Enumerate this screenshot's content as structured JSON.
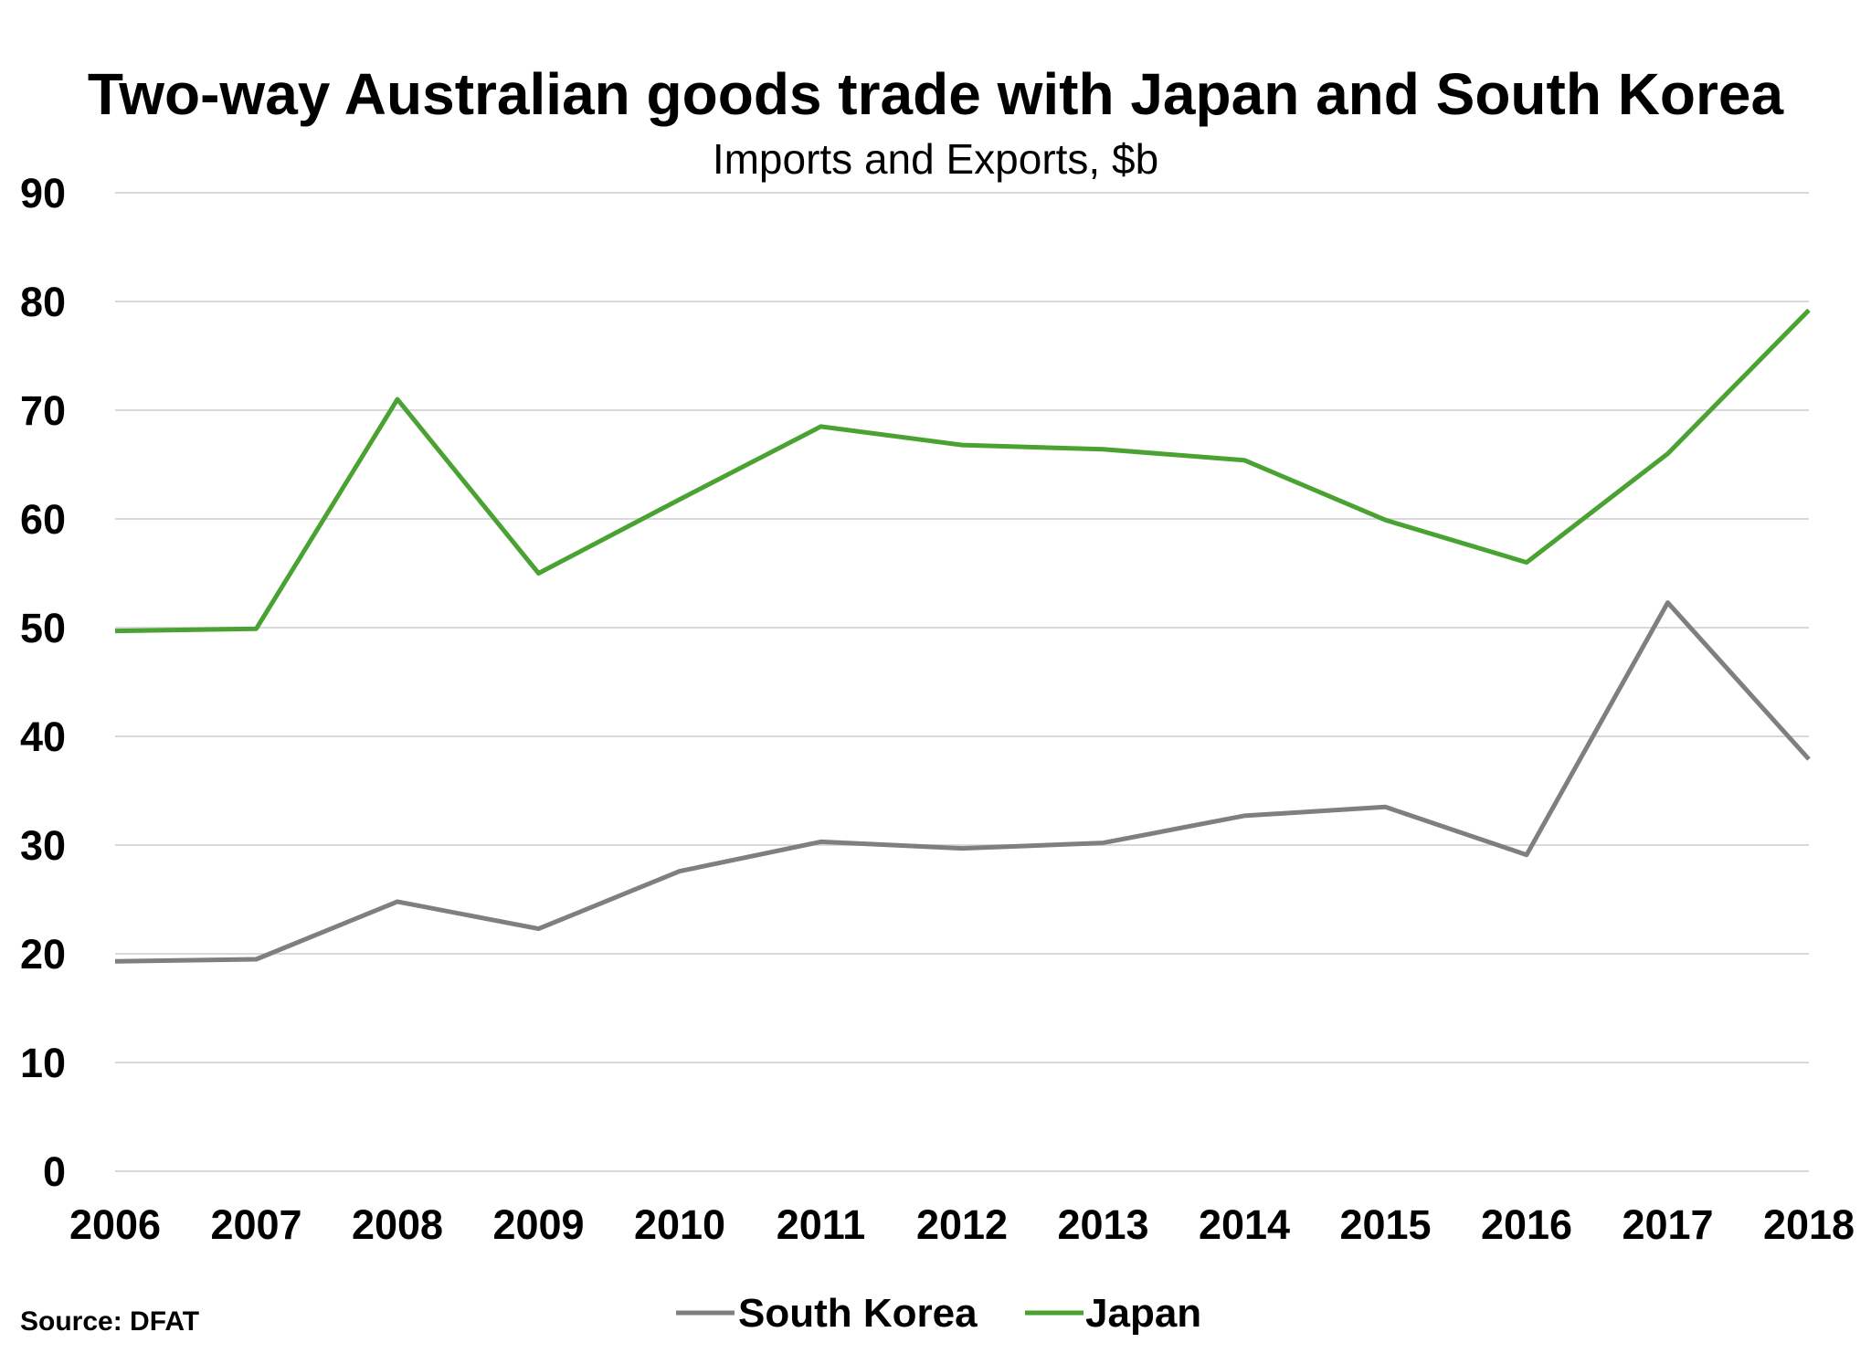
{
  "chart_data": {
    "type": "line",
    "title": "Two-way Australian goods trade with Japan and South Korea",
    "subtitle": "Imports and Exports, $b",
    "source": "Source: DFAT",
    "xlabel": "",
    "ylabel": "",
    "ylim": [
      0,
      90
    ],
    "yticks": [
      0,
      10,
      20,
      30,
      40,
      50,
      60,
      70,
      80,
      90
    ],
    "grid": true,
    "legend_position": "bottom-center",
    "categories": [
      "2006",
      "2007",
      "2008",
      "2009",
      "2010",
      "2011",
      "2012",
      "2013",
      "2014",
      "2015",
      "2016",
      "2017",
      "2018"
    ],
    "series": [
      {
        "name": "South Korea",
        "color": "#7f7f7f",
        "values": [
          19.3,
          19.5,
          24.8,
          22.3,
          27.6,
          30.3,
          29.7,
          30.2,
          32.7,
          33.5,
          29.1,
          52.3,
          37.9
        ]
      },
      {
        "name": "Japan",
        "color": "#4aa232",
        "values": [
          49.7,
          49.9,
          71.0,
          55.0,
          61.8,
          68.5,
          66.8,
          66.4,
          65.4,
          59.9,
          56.0,
          66.0,
          79.2
        ]
      }
    ]
  }
}
